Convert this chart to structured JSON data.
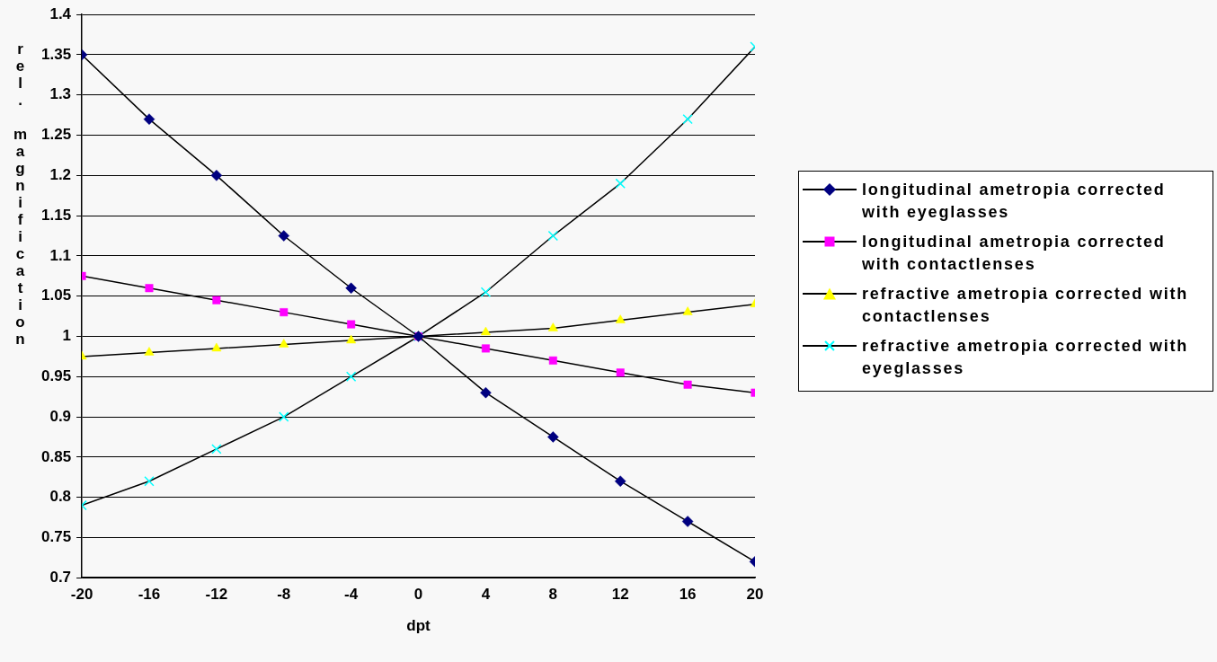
{
  "chart_data": {
    "type": "line",
    "xlabel": "dpt",
    "ylabel": "rel. magnification",
    "x": [
      -20,
      -16,
      -12,
      -8,
      -4,
      0,
      4,
      8,
      12,
      16,
      20
    ],
    "xlim": [
      -20,
      20
    ],
    "xticks": [
      -20,
      -16,
      -12,
      -8,
      -4,
      0,
      4,
      8,
      12,
      16,
      20
    ],
    "ylim": [
      0.7,
      1.4
    ],
    "yticks": [
      0.7,
      0.75,
      0.8,
      0.85,
      0.9,
      0.95,
      1,
      1.05,
      1.1,
      1.15,
      1.2,
      1.25,
      1.3,
      1.35,
      1.4
    ],
    "grid": "y",
    "legend": "right",
    "line_style": "solid",
    "series": [
      {
        "name": "longitudinal ametropia corrected with eyeglasses",
        "color": "#000080",
        "marker": "diamond",
        "values": [
          1.35,
          1.27,
          1.2,
          1.125,
          1.06,
          1,
          0.93,
          0.875,
          0.82,
          0.77,
          0.72
        ]
      },
      {
        "name": "longitudinal ametropia corrected with contactlenses",
        "color": "#ff00ff",
        "marker": "square",
        "values": [
          1.075,
          1.06,
          1.045,
          1.03,
          1.015,
          1,
          0.985,
          0.97,
          0.955,
          0.94,
          0.93
        ]
      },
      {
        "name": "refractive ametropia corrected with contactlenses",
        "color": "#ffff00",
        "marker": "triangle",
        "values": [
          0.975,
          0.98,
          0.985,
          0.99,
          0.995,
          1,
          1.005,
          1.01,
          1.02,
          1.03,
          1.04
        ]
      },
      {
        "name": "refractive ametropia corrected with eyeglasses",
        "color": "#00ffff",
        "marker": "cross",
        "values": [
          0.79,
          0.82,
          0.86,
          0.9,
          0.95,
          1,
          1.055,
          1.125,
          1.19,
          1.27,
          1.36
        ]
      }
    ]
  }
}
